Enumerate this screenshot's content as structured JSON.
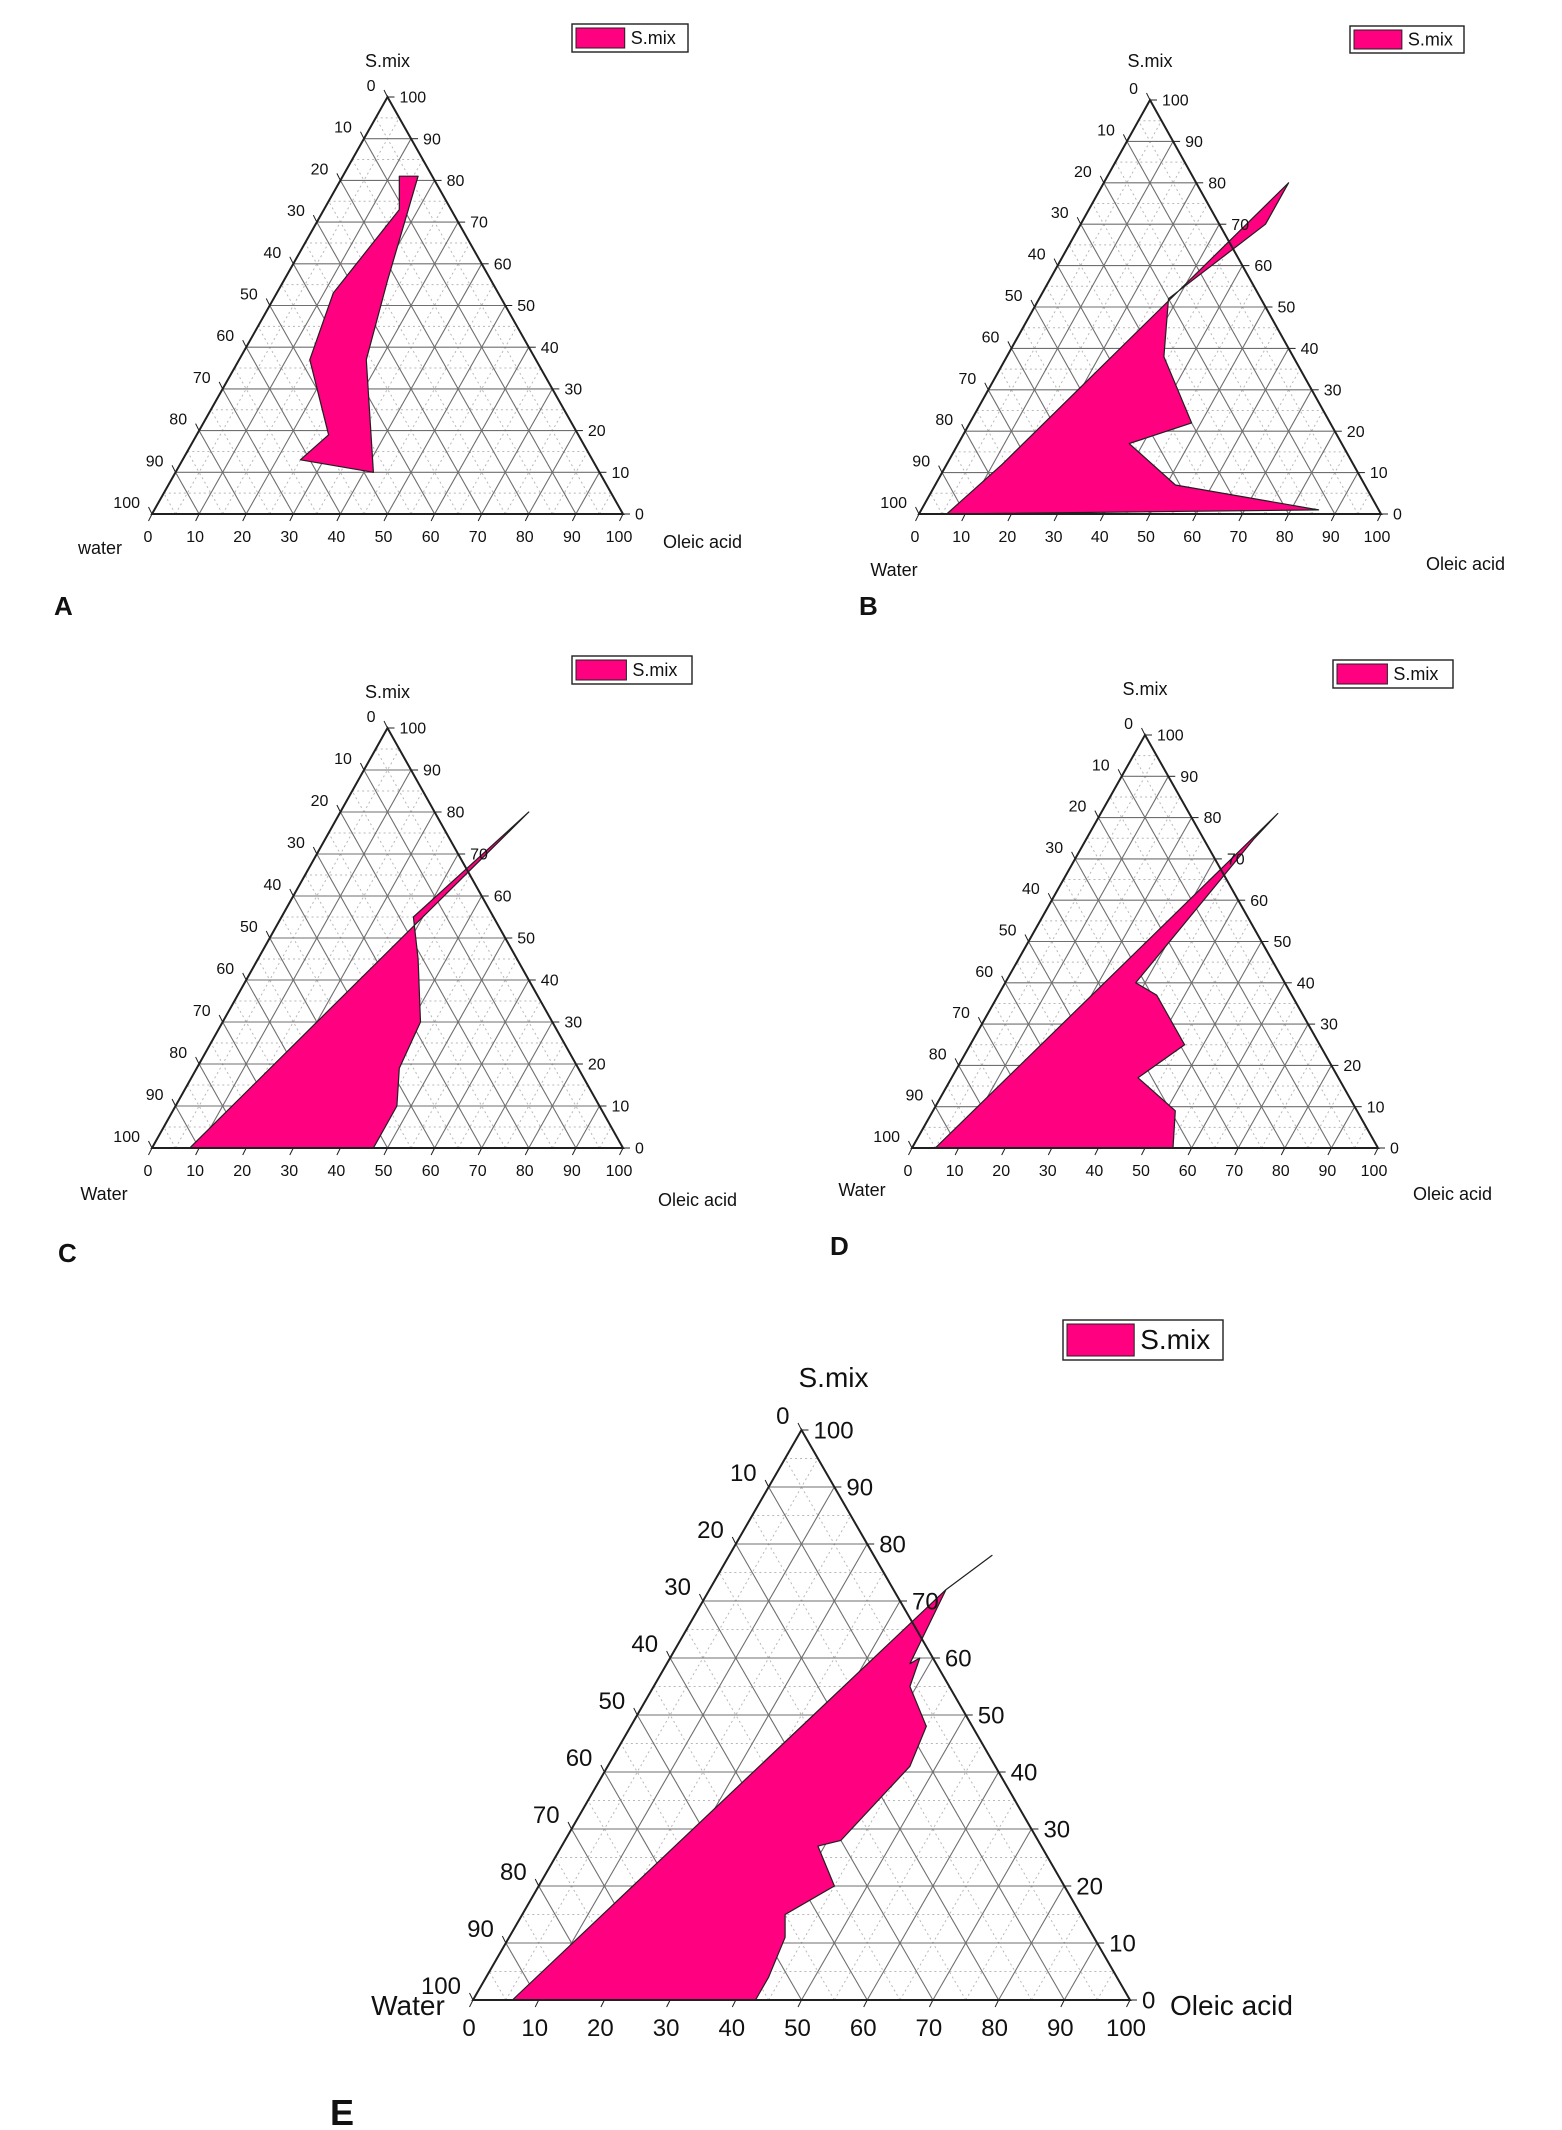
{
  "colors": {
    "region": "#ff0080",
    "edge": "#202020",
    "grid": "#6f6f6f",
    "minor_grid": "#b8b8b8"
  },
  "chart_data": [
    {
      "type": "ternary-area",
      "panel_label": "A",
      "legend_label": "S.mix",
      "axes": {
        "top": "S.mix",
        "left": "water",
        "right": "Oleic acid"
      },
      "ticks": {
        "bottom": [
          0,
          10,
          20,
          30,
          40,
          50,
          60,
          70,
          80,
          90,
          100
        ],
        "right": [
          100,
          90,
          80,
          70,
          60,
          50,
          40,
          30,
          20,
          10,
          0
        ],
        "left": [
          0,
          10,
          20,
          30,
          40,
          50,
          60,
          70,
          80,
          90,
          100
        ]
      },
      "region_points_oleic_smix": [
        [
          12,
          81
        ],
        [
          16,
          73
        ],
        [
          12,
          53
        ],
        [
          15,
          37
        ],
        [
          28,
          19
        ],
        [
          25,
          13
        ],
        [
          42,
          10
        ],
        [
          27,
          37
        ],
        [
          22,
          56
        ],
        [
          16,
          81
        ]
      ]
    },
    {
      "type": "ternary-area",
      "panel_label": "B",
      "legend_label": "S.mix",
      "axes": {
        "top": "S.mix",
        "left": "Water",
        "right": "Oleic acid"
      },
      "ticks": {
        "bottom": [
          0,
          10,
          20,
          30,
          40,
          50,
          60,
          70,
          80,
          90,
          100
        ],
        "right": [
          100,
          90,
          80,
          70,
          60,
          50,
          40,
          30,
          20,
          10,
          0
        ],
        "left": [
          0,
          10,
          20,
          30,
          40,
          50,
          60,
          70,
          80,
          90,
          100
        ]
      },
      "region_points_oleic_smix": [
        [
          40,
          80
        ],
        [
          40,
          70
        ],
        [
          28,
          52
        ],
        [
          34,
          38
        ],
        [
          48,
          22
        ],
        [
          37,
          17
        ],
        [
          52,
          7
        ],
        [
          86,
          1
        ],
        [
          6,
          0
        ],
        [
          12,
          12
        ],
        [
          40,
          80
        ]
      ]
    },
    {
      "type": "ternary-area",
      "panel_label": "C",
      "legend_label": "S.mix",
      "axes": {
        "top": "S.mix",
        "left": "Water",
        "right": "Oleic acid"
      },
      "ticks": {
        "bottom": [
          0,
          10,
          20,
          30,
          40,
          50,
          60,
          70,
          80,
          90,
          100
        ],
        "right": [
          100,
          90,
          80,
          70,
          60,
          50,
          40,
          30,
          20,
          10,
          0
        ],
        "left": [
          0,
          10,
          20,
          30,
          40,
          50,
          60,
          70,
          80,
          90,
          100
        ]
      },
      "region_points_oleic_smix": [
        [
          40,
          80
        ],
        [
          28,
          55
        ],
        [
          34,
          45
        ],
        [
          42,
          30
        ],
        [
          43,
          19
        ],
        [
          47,
          10
        ],
        [
          47,
          0
        ],
        [
          8,
          0
        ],
        [
          40,
          80
        ]
      ]
    },
    {
      "type": "ternary-area",
      "panel_label": "D",
      "legend_label": "S.mix",
      "axes": {
        "top": "S.mix",
        "left": "Water",
        "right": "Oleic acid"
      },
      "ticks": {
        "bottom": [
          0,
          10,
          20,
          30,
          40,
          50,
          60,
          70,
          80,
          90,
          100
        ],
        "right": [
          100,
          90,
          80,
          70,
          60,
          50,
          40,
          30,
          20,
          10,
          0
        ],
        "left": [
          0,
          10,
          20,
          30,
          40,
          50,
          60,
          70,
          80,
          90,
          100
        ]
      },
      "region_points_oleic_smix": [
        [
          38,
          81
        ],
        [
          36,
          75
        ],
        [
          28,
          40
        ],
        [
          34,
          37
        ],
        [
          46,
          25
        ],
        [
          40,
          17
        ],
        [
          52,
          9
        ],
        [
          56,
          0
        ],
        [
          5,
          0
        ],
        [
          38,
          81
        ]
      ]
    },
    {
      "type": "ternary-area",
      "panel_label": "E",
      "legend_label": "S.mix",
      "axes": {
        "top": "S.mix",
        "left": "Water",
        "right": "Oleic acid"
      },
      "ticks": {
        "bottom": [
          0,
          10,
          20,
          30,
          40,
          50,
          60,
          70,
          80,
          90,
          100
        ],
        "right": [
          100,
          90,
          80,
          70,
          60,
          50,
          40,
          30,
          20,
          10,
          0
        ],
        "left": [
          0,
          10,
          20,
          30,
          40,
          50,
          60,
          70,
          80,
          90,
          100
        ]
      },
      "region_points_oleic_smix": [
        [
          40,
          78
        ],
        [
          36,
          72
        ],
        [
          37,
          59
        ],
        [
          38,
          60
        ],
        [
          39,
          55
        ],
        [
          45,
          48
        ],
        [
          46,
          41
        ],
        [
          42,
          28
        ],
        [
          39,
          27
        ],
        [
          45,
          20
        ],
        [
          40,
          15
        ],
        [
          42,
          11
        ],
        [
          43,
          4
        ],
        [
          43,
          0
        ],
        [
          6,
          0
        ],
        [
          36,
          72
        ],
        [
          40,
          78
        ]
      ]
    }
  ]
}
